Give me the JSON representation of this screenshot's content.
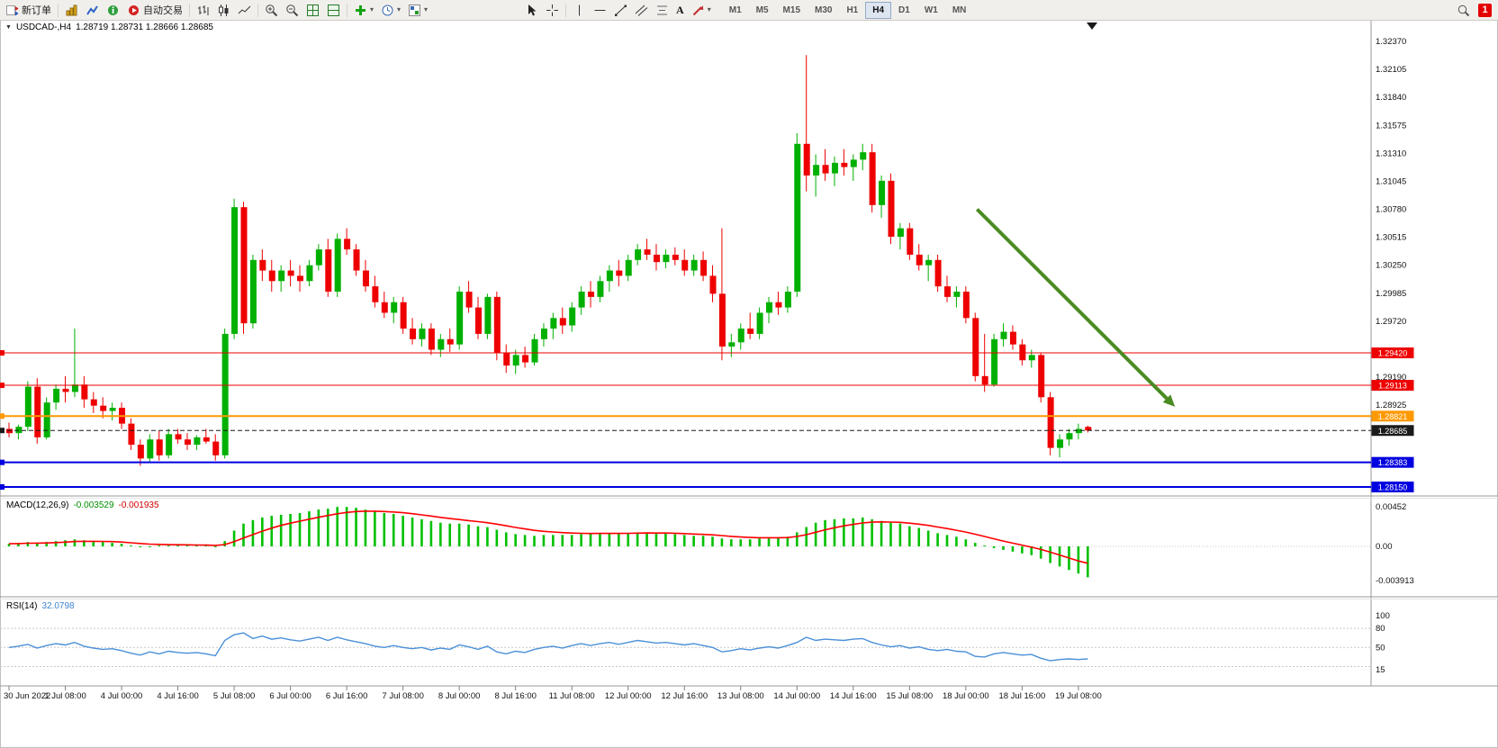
{
  "toolbar": {
    "new_order": "新订单",
    "autotrade": "自动交易",
    "text_tool": "A",
    "timeframes": [
      "M1",
      "M5",
      "M15",
      "M30",
      "H1",
      "H4",
      "D1",
      "W1",
      "MN"
    ],
    "active_timeframe": "H4",
    "badge_count": "1"
  },
  "icons": {
    "caret": "▾",
    "down_triangle": "▼"
  },
  "chart": {
    "symbol_period": "USDCAD-,H4",
    "ohlc": "1.28719 1.28731 1.28666 1.28685",
    "macd_name": "MACD(12,26,9)",
    "macd_value": "-0.003529",
    "macd_signal_value": "-0.001935",
    "rsi_name": "RSI(14)",
    "rsi_value": "32.0798"
  },
  "chart_data": {
    "type": "candlestick",
    "symbol": "USDCAD",
    "period": "H4",
    "colors": {
      "up": "#00b000",
      "down": "#ee0000",
      "macd_hist": "#00c000",
      "macd_signal": "#ff0000",
      "rsi_line": "#4a90d8",
      "arrow": "#4a8b22"
    },
    "price_axis_ticks": [
      "1.32370",
      "1.32105",
      "1.31840",
      "1.31575",
      "1.31310",
      "1.31045",
      "1.30780",
      "1.30515",
      "1.30250",
      "1.29985",
      "1.29720",
      "1.29190",
      "1.28925"
    ],
    "hlines": [
      {
        "price": 1.2942,
        "label": "1.29420",
        "color": "#ee0000",
        "width": 1,
        "dashed": false
      },
      {
        "price": 1.29113,
        "label": "1.29113",
        "color": "#ee0000",
        "width": 1,
        "dashed": false
      },
      {
        "price": 1.28821,
        "label": "1.28821",
        "color": "#ff9900",
        "width": 2,
        "dashed": false
      },
      {
        "price": 1.28685,
        "label": "1.28685",
        "color": "#1a1a1a",
        "width": 1,
        "dashed": true
      },
      {
        "price": 1.28383,
        "label": "1.28383",
        "color": "#0000e0",
        "width": 2,
        "dashed": false
      },
      {
        "price": 1.2815,
        "label": "1.28150",
        "color": "#0000e0",
        "width": 2,
        "dashed": false
      }
    ],
    "time_labels": [
      [
        0,
        "30 Jun 2022"
      ],
      [
        6,
        "1 Jul 08:00"
      ],
      [
        12,
        "4 Jul 00:00"
      ],
      [
        18,
        "4 Jul 16:00"
      ],
      [
        24,
        "5 Jul 08:00"
      ],
      [
        30,
        "6 Jul 00:00"
      ],
      [
        36,
        "6 Jul 16:00"
      ],
      [
        42,
        "7 Jul 08:00"
      ],
      [
        48,
        "8 Jul 00:00"
      ],
      [
        54,
        "8 Jul 16:00"
      ],
      [
        60,
        "11 Jul 08:00"
      ],
      [
        66,
        "12 Jul 00:00"
      ],
      [
        72,
        "12 Jul 16:00"
      ],
      [
        78,
        "13 Jul 08:00"
      ],
      [
        84,
        "14 Jul 00:00"
      ],
      [
        90,
        "14 Jul 16:00"
      ],
      [
        96,
        "15 Jul 08:00"
      ],
      [
        102,
        "18 Jul 00:00"
      ],
      [
        108,
        "18 Jul 16:00"
      ],
      [
        114,
        "19 Jul 08:00"
      ]
    ],
    "candles": [
      [
        1.287,
        1.2876,
        1.2862,
        1.2866
      ],
      [
        1.2866,
        1.2874,
        1.286,
        1.2872
      ],
      [
        1.2872,
        1.2915,
        1.2868,
        1.291
      ],
      [
        1.291,
        1.2918,
        1.2856,
        1.2862
      ],
      [
        1.2862,
        1.29,
        1.286,
        1.2895
      ],
      [
        1.2895,
        1.2912,
        1.2888,
        1.2908
      ],
      [
        1.2908,
        1.292,
        1.2895,
        1.2905
      ],
      [
        1.2905,
        1.2965,
        1.29,
        1.2912
      ],
      [
        1.2912,
        1.292,
        1.289,
        1.2898
      ],
      [
        1.2898,
        1.2905,
        1.2885,
        1.2892
      ],
      [
        1.2892,
        1.29,
        1.288,
        1.2887
      ],
      [
        1.2887,
        1.2895,
        1.2878,
        1.289
      ],
      [
        1.289,
        1.2895,
        1.287,
        1.2875
      ],
      [
        1.2875,
        1.288,
        1.285,
        1.2855
      ],
      [
        1.2855,
        1.286,
        1.2835,
        1.2842
      ],
      [
        1.2842,
        1.2865,
        1.2838,
        1.286
      ],
      [
        1.286,
        1.2868,
        1.284,
        1.2845
      ],
      [
        1.2845,
        1.287,
        1.2842,
        1.2865
      ],
      [
        1.2865,
        1.287,
        1.2856,
        1.286
      ],
      [
        1.286,
        1.2866,
        1.285,
        1.2855
      ],
      [
        1.2855,
        1.2864,
        1.285,
        1.2862
      ],
      [
        1.2862,
        1.287,
        1.2856,
        1.2858
      ],
      [
        1.2858,
        1.2865,
        1.284,
        1.2845
      ],
      [
        1.2845,
        1.2965,
        1.2842,
        1.296
      ],
      [
        1.296,
        1.3088,
        1.2955,
        1.308
      ],
      [
        1.308,
        1.3085,
        1.296,
        1.297
      ],
      [
        1.297,
        1.3035,
        1.2965,
        1.303
      ],
      [
        1.303,
        1.304,
        1.301,
        1.302
      ],
      [
        1.302,
        1.303,
        1.3,
        1.301
      ],
      [
        1.301,
        1.3025,
        1.3,
        1.302
      ],
      [
        1.302,
        1.303,
        1.3005,
        1.3015
      ],
      [
        1.3015,
        1.3025,
        1.3,
        1.301
      ],
      [
        1.301,
        1.303,
        1.3005,
        1.3025
      ],
      [
        1.3025,
        1.3045,
        1.302,
        1.304
      ],
      [
        1.304,
        1.305,
        1.2995,
        1.3
      ],
      [
        1.3,
        1.3055,
        1.2995,
        1.305
      ],
      [
        1.305,
        1.306,
        1.3035,
        1.304
      ],
      [
        1.304,
        1.3045,
        1.3015,
        1.302
      ],
      [
        1.302,
        1.303,
        1.3,
        1.3005
      ],
      [
        1.3005,
        1.3015,
        1.2985,
        1.299
      ],
      [
        1.299,
        1.3,
        1.2975,
        1.298
      ],
      [
        1.298,
        1.2995,
        1.297,
        1.299
      ],
      [
        1.299,
        1.2995,
        1.296,
        1.2965
      ],
      [
        1.2965,
        1.2975,
        1.295,
        1.2955
      ],
      [
        1.2955,
        1.297,
        1.2948,
        1.2965
      ],
      [
        1.2965,
        1.297,
        1.294,
        1.2945
      ],
      [
        1.2945,
        1.296,
        1.2938,
        1.2955
      ],
      [
        1.2955,
        1.2965,
        1.2943,
        1.295
      ],
      [
        1.295,
        1.3005,
        1.2945,
        1.3
      ],
      [
        1.3,
        1.301,
        1.298,
        1.2985
      ],
      [
        1.2985,
        1.2995,
        1.2955,
        1.296
      ],
      [
        1.296,
        1.2998,
        1.2955,
        1.2995
      ],
      [
        1.2995,
        1.3,
        1.2935,
        1.2942
      ],
      [
        1.2942,
        1.295,
        1.2923,
        1.293
      ],
      [
        1.293,
        1.2945,
        1.2922,
        1.294
      ],
      [
        1.294,
        1.2948,
        1.2928,
        1.2933
      ],
      [
        1.2933,
        1.296,
        1.293,
        1.2955
      ],
      [
        1.2955,
        1.297,
        1.2948,
        1.2965
      ],
      [
        1.2965,
        1.298,
        1.2955,
        1.2975
      ],
      [
        1.2975,
        1.2985,
        1.296,
        1.2968
      ],
      [
        1.2968,
        1.299,
        1.2962,
        1.2985
      ],
      [
        1.2985,
        1.3005,
        1.2978,
        1.3
      ],
      [
        1.3,
        1.301,
        1.2985,
        1.2995
      ],
      [
        1.2995,
        1.3015,
        1.299,
        1.301
      ],
      [
        1.301,
        1.3025,
        1.3,
        1.302
      ],
      [
        1.302,
        1.303,
        1.3005,
        1.3015
      ],
      [
        1.3015,
        1.3035,
        1.301,
        1.303
      ],
      [
        1.303,
        1.3045,
        1.3025,
        1.304
      ],
      [
        1.304,
        1.305,
        1.303,
        1.3035
      ],
      [
        1.3035,
        1.3045,
        1.302,
        1.3028
      ],
      [
        1.3028,
        1.304,
        1.3022,
        1.3035
      ],
      [
        1.3035,
        1.3042,
        1.3025,
        1.303
      ],
      [
        1.303,
        1.304,
        1.3015,
        1.302
      ],
      [
        1.302,
        1.3035,
        1.3015,
        1.303
      ],
      [
        1.303,
        1.3038,
        1.301,
        1.3015
      ],
      [
        1.3015,
        1.3025,
        1.299,
        1.2998
      ],
      [
        1.2998,
        1.306,
        1.2935,
        1.2948
      ],
      [
        1.2948,
        1.296,
        1.2938,
        1.2952
      ],
      [
        1.2952,
        1.297,
        1.2945,
        1.2965
      ],
      [
        1.2965,
        1.298,
        1.2955,
        1.296
      ],
      [
        1.296,
        1.2985,
        1.2955,
        1.298
      ],
      [
        1.298,
        1.2995,
        1.297,
        1.299
      ],
      [
        1.299,
        1.3,
        1.2978,
        1.2985
      ],
      [
        1.2985,
        1.3005,
        1.298,
        1.3
      ],
      [
        1.3,
        1.315,
        1.2995,
        1.314
      ],
      [
        1.314,
        1.3224,
        1.3095,
        1.311
      ],
      [
        1.311,
        1.313,
        1.309,
        1.312
      ],
      [
        1.312,
        1.3135,
        1.3105,
        1.3112
      ],
      [
        1.3112,
        1.3128,
        1.31,
        1.3122
      ],
      [
        1.3122,
        1.3135,
        1.311,
        1.3118
      ],
      [
        1.3118,
        1.313,
        1.3105,
        1.3125
      ],
      [
        1.3125,
        1.314,
        1.3115,
        1.3132
      ],
      [
        1.3132,
        1.314,
        1.3075,
        1.3082
      ],
      [
        1.3082,
        1.311,
        1.307,
        1.3105
      ],
      [
        1.3105,
        1.3112,
        1.3045,
        1.3052
      ],
      [
        1.3052,
        1.3065,
        1.304,
        1.306
      ],
      [
        1.306,
        1.3065,
        1.303,
        1.3035
      ],
      [
        1.3035,
        1.3045,
        1.302,
        1.3025
      ],
      [
        1.3025,
        1.3035,
        1.301,
        1.303
      ],
      [
        1.303,
        1.3035,
        1.3,
        1.3005
      ],
      [
        1.3005,
        1.3015,
        1.299,
        1.2995
      ],
      [
        1.2995,
        1.3005,
        1.2985,
        1.3
      ],
      [
        1.3,
        1.3005,
        1.297,
        1.2975
      ],
      [
        1.2975,
        1.298,
        1.2915,
        1.292
      ],
      [
        1.292,
        1.296,
        1.2905,
        1.2912
      ],
      [
        1.2912,
        1.296,
        1.291,
        1.2955
      ],
      [
        1.2955,
        1.297,
        1.2948,
        1.2962
      ],
      [
        1.2962,
        1.2968,
        1.2945,
        1.295
      ],
      [
        1.295,
        1.2955,
        1.293,
        1.2935
      ],
      [
        1.2935,
        1.2945,
        1.2928,
        1.294
      ],
      [
        1.294,
        1.2942,
        1.2895,
        1.29
      ],
      [
        1.29,
        1.2905,
        1.2845,
        1.2852
      ],
      [
        1.2852,
        1.2865,
        1.2843,
        1.286
      ],
      [
        1.286,
        1.287,
        1.2854,
        1.2866
      ],
      [
        1.2866,
        1.2875,
        1.286,
        1.287
      ],
      [
        1.28719,
        1.28731,
        1.28666,
        1.28685
      ]
    ],
    "macd": {
      "axis": [
        "0.00452",
        "0.00",
        "-0.003913"
      ],
      "hist": [
        0.0003,
        0.0004,
        0.0005,
        0.0004,
        0.0005,
        0.0006,
        0.0007,
        0.0008,
        0.0007,
        0.0006,
        0.0005,
        0.0004,
        0.0003,
        0.0001,
        0.0,
        0.0,
        0.0001,
        0.0001,
        0.0001,
        0.0001,
        0.0001,
        0.0001,
        0.0,
        0.0006,
        0.0018,
        0.0026,
        0.003,
        0.0033,
        0.0035,
        0.0036,
        0.0037,
        0.0038,
        0.004,
        0.0042,
        0.0043,
        0.0045,
        0.0045,
        0.0044,
        0.0042,
        0.004,
        0.0038,
        0.0037,
        0.0035,
        0.0033,
        0.0031,
        0.0029,
        0.0027,
        0.0026,
        0.0026,
        0.0025,
        0.0023,
        0.0022,
        0.0019,
        0.0016,
        0.0014,
        0.0013,
        0.0012,
        0.0013,
        0.0013,
        0.0013,
        0.0013,
        0.0014,
        0.0014,
        0.0015,
        0.0015,
        0.0015,
        0.0015,
        0.0016,
        0.0016,
        0.0015,
        0.0015,
        0.0014,
        0.0013,
        0.0012,
        0.0012,
        0.0011,
        0.0009,
        0.0008,
        0.0008,
        0.0008,
        0.0009,
        0.001,
        0.001,
        0.0011,
        0.0016,
        0.0022,
        0.0027,
        0.003,
        0.0031,
        0.0032,
        0.0032,
        0.0033,
        0.0031,
        0.0029,
        0.0027,
        0.0026,
        0.0023,
        0.0021,
        0.0018,
        0.0015,
        0.0013,
        0.0011,
        0.0008,
        0.0004,
        0.0001,
        -0.0002,
        -0.0004,
        -0.0006,
        -0.0008,
        -0.001,
        -0.0014,
        -0.0019,
        -0.0023,
        -0.0027,
        -0.0031,
        -0.003529
      ],
      "signal": [
        0.0003,
        0.00032,
        0.00036,
        0.00037,
        0.00039,
        0.00043,
        0.00048,
        0.00055,
        0.00058,
        0.00058,
        0.00057,
        0.00054,
        0.00049,
        0.00041,
        0.00033,
        0.00026,
        0.00023,
        0.0002,
        0.00018,
        0.00017,
        0.00015,
        0.00014,
        0.00011,
        0.00021,
        0.00053,
        0.00094,
        0.00135,
        0.00174,
        0.00209,
        0.00239,
        0.00265,
        0.00288,
        0.0031,
        0.00332,
        0.00352,
        0.00372,
        0.00387,
        0.00398,
        0.00402,
        0.00402,
        0.00398,
        0.00392,
        0.00384,
        0.00373,
        0.0036,
        0.00346,
        0.00331,
        0.00317,
        0.00306,
        0.00294,
        0.00282,
        0.0027,
        0.00254,
        0.00235,
        0.00216,
        0.00199,
        0.00183,
        0.00172,
        0.00164,
        0.00157,
        0.00152,
        0.00149,
        0.00147,
        0.00148,
        0.00148,
        0.00148,
        0.00149,
        0.00151,
        0.00153,
        0.00152,
        0.00152,
        0.0015,
        0.00146,
        0.00141,
        0.00137,
        0.00131,
        0.00123,
        0.00114,
        0.00107,
        0.00102,
        0.00099,
        0.00099,
        0.00099,
        0.00101,
        0.00113,
        0.00134,
        0.00161,
        0.00189,
        0.00213,
        0.00234,
        0.00251,
        0.00267,
        0.00276,
        0.00279,
        0.00277,
        0.00274,
        0.00265,
        0.00254,
        0.00239,
        0.00221,
        0.00203,
        0.00184,
        0.00163,
        0.00139,
        0.00113,
        0.00086,
        0.00061,
        0.00037,
        0.00014,
        -9e-05,
        -0.00035,
        -0.00066,
        -0.00099,
        -0.00133,
        -0.00166,
        -0.001935
      ]
    },
    "rsi": {
      "axis": [
        "100",
        "80",
        "50",
        "15"
      ],
      "levels": [
        80,
        50,
        20
      ],
      "values": [
        50,
        52,
        55,
        49,
        53,
        56,
        54,
        58,
        52,
        49,
        47,
        48,
        45,
        41,
        38,
        43,
        40,
        44,
        42,
        41,
        42,
        40,
        37,
        61,
        70,
        73,
        64,
        68,
        63,
        65,
        62,
        60,
        63,
        66,
        61,
        66,
        62,
        59,
        56,
        52,
        50,
        53,
        50,
        48,
        50,
        46,
        49,
        47,
        54,
        51,
        47,
        52,
        43,
        40,
        44,
        42,
        47,
        50,
        52,
        49,
        53,
        56,
        53,
        56,
        58,
        55,
        58,
        61,
        59,
        57,
        58,
        56,
        54,
        56,
        53,
        50,
        43,
        45,
        48,
        46,
        49,
        51,
        49,
        53,
        58,
        66,
        61,
        63,
        62,
        61,
        63,
        64,
        58,
        54,
        51,
        53,
        49,
        51,
        47,
        45,
        47,
        44,
        43,
        36,
        35,
        40,
        42,
        40,
        38,
        39,
        33,
        29,
        31,
        32,
        31,
        32.0798
      ]
    },
    "arrow": {
      "from": {
        "index": 103.2,
        "price": 1.3078
      },
      "to": {
        "index": 124.3,
        "price": 1.2891
      }
    }
  }
}
